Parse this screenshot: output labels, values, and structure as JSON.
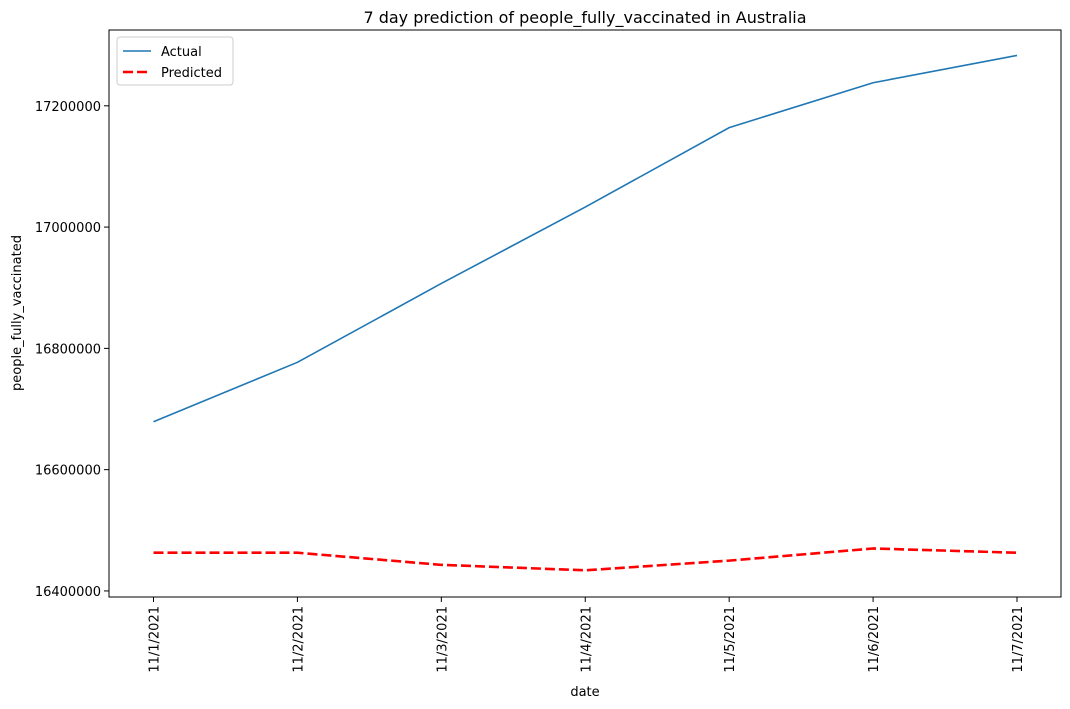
{
  "chart_data": {
    "type": "line",
    "title": "7 day prediction of people_fully_vaccinated in Australia",
    "xlabel": "date",
    "ylabel": "people_fully_vaccinated",
    "categories": [
      "11/1/2021",
      "11/2/2021",
      "11/3/2021",
      "11/4/2021",
      "11/5/2021",
      "11/6/2021",
      "11/7/2021"
    ],
    "ylim": [
      16390000,
      17325000
    ],
    "yticks": [
      16400000,
      16600000,
      16800000,
      17000000,
      17200000
    ],
    "ytick_labels": [
      "16400000",
      "16600000",
      "16800000",
      "17000000",
      "17200000"
    ],
    "series": [
      {
        "name": "Actual",
        "values": [
          16679000,
          16777000,
          16907000,
          17033000,
          17164000,
          17238000,
          17283000
        ],
        "color": "#1f77b4",
        "style": "solid"
      },
      {
        "name": "Predicted",
        "values": [
          16463000,
          16463000,
          16443000,
          16434000,
          16450000,
          16470000,
          16463000
        ],
        "color": "#ff0000",
        "style": "dashed"
      }
    ],
    "legend": "top-left",
    "grid": false
  }
}
